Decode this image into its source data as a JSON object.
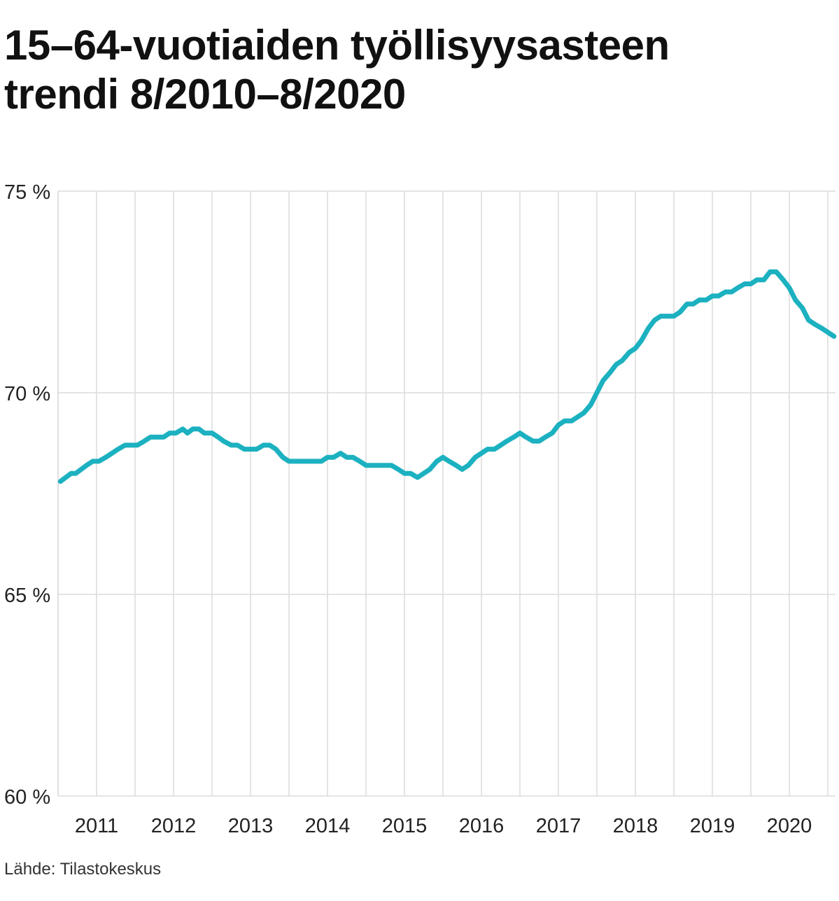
{
  "title_line1": "15–64-vuotiaiden työllisyysasteen",
  "title_line2": "trendi 8/2010–8/2020",
  "source": "Lähde: Tilastokeskus",
  "chart_data": {
    "type": "line",
    "title": "15–64-vuotiaiden työllisyysasteen trendi 8/2010–8/2020",
    "xlabel": "",
    "ylabel": "",
    "ylim": [
      60,
      75
    ],
    "xlim": [
      2010.5,
      2020.6
    ],
    "y_ticks": [
      60,
      65,
      70,
      75
    ],
    "y_tick_labels": [
      "60 %",
      "65 %",
      "70 %",
      "75 %"
    ],
    "x_ticks": [
      2011,
      2012,
      2013,
      2014,
      2015,
      2016,
      2017,
      2018,
      2019,
      2020
    ],
    "x_tick_labels": [
      "2011",
      "2012",
      "2013",
      "2014",
      "2015",
      "2016",
      "2017",
      "2018",
      "2019",
      "2020"
    ],
    "grid": true,
    "line_color": "#1cb1c0",
    "series": [
      {
        "name": "Työllisyysasteen trendi",
        "x": [
          2010.53,
          2010.67,
          2010.7,
          2010.73,
          2010.8,
          2010.87,
          2010.95,
          2011.03,
          2011.12,
          2011.2,
          2011.28,
          2011.37,
          2011.45,
          2011.53,
          2011.62,
          2011.7,
          2011.78,
          2011.87,
          2011.95,
          2012.03,
          2012.12,
          2012.18,
          2012.25,
          2012.33,
          2012.4,
          2012.5,
          2012.58,
          2012.65,
          2012.75,
          2012.83,
          2012.92,
          2013.0,
          2013.08,
          2013.17,
          2013.25,
          2013.33,
          2013.42,
          2013.5,
          2013.58,
          2013.67,
          2013.75,
          2013.83,
          2013.92,
          2014.0,
          2014.08,
          2014.17,
          2014.25,
          2014.33,
          2014.42,
          2014.5,
          2014.58,
          2014.67,
          2014.75,
          2014.83,
          2014.92,
          2015.0,
          2015.08,
          2015.17,
          2015.25,
          2015.33,
          2015.42,
          2015.5,
          2015.58,
          2015.67,
          2015.75,
          2015.83,
          2015.92,
          2016.0,
          2016.08,
          2016.17,
          2016.25,
          2016.33,
          2016.42,
          2016.5,
          2016.58,
          2016.67,
          2016.75,
          2016.83,
          2016.92,
          2017.0,
          2017.08,
          2017.17,
          2017.25,
          2017.33,
          2017.42,
          2017.5,
          2017.58,
          2017.67,
          2017.75,
          2017.83,
          2017.92,
          2018.0,
          2018.08,
          2018.17,
          2018.25,
          2018.33,
          2018.42,
          2018.5,
          2018.58,
          2018.67,
          2018.75,
          2018.83,
          2018.92,
          2019.0,
          2019.08,
          2019.17,
          2019.25,
          2019.33,
          2019.42,
          2019.5,
          2019.58,
          2019.67,
          2019.75,
          2019.83,
          2019.92,
          2020.0,
          2020.08,
          2020.17,
          2020.25,
          2020.33,
          2020.42,
          2020.5,
          2020.58
        ],
        "y": [
          67.8,
          68.0,
          68.0,
          68.0,
          68.1,
          68.2,
          68.3,
          68.3,
          68.4,
          68.5,
          68.6,
          68.7,
          68.7,
          68.7,
          68.8,
          68.9,
          68.9,
          68.9,
          69.0,
          69.0,
          69.1,
          69.0,
          69.1,
          69.1,
          69.0,
          69.0,
          68.9,
          68.8,
          68.7,
          68.7,
          68.6,
          68.6,
          68.6,
          68.7,
          68.7,
          68.6,
          68.4,
          68.3,
          68.3,
          68.3,
          68.3,
          68.3,
          68.3,
          68.4,
          68.4,
          68.5,
          68.4,
          68.4,
          68.3,
          68.2,
          68.2,
          68.2,
          68.2,
          68.2,
          68.1,
          68.0,
          68.0,
          67.9,
          68.0,
          68.1,
          68.3,
          68.4,
          68.3,
          68.2,
          68.1,
          68.2,
          68.4,
          68.5,
          68.6,
          68.6,
          68.7,
          68.8,
          68.9,
          69.0,
          68.9,
          68.8,
          68.8,
          68.9,
          69.0,
          69.2,
          69.3,
          69.3,
          69.4,
          69.5,
          69.7,
          70.0,
          70.3,
          70.5,
          70.7,
          70.8,
          71.0,
          71.1,
          71.3,
          71.6,
          71.8,
          71.9,
          71.9,
          71.9,
          72.0,
          72.2,
          72.2,
          72.3,
          72.3,
          72.4,
          72.4,
          72.5,
          72.5,
          72.6,
          72.7,
          72.7,
          72.8,
          72.8,
          73.0,
          73.0,
          72.8,
          72.6,
          72.3,
          72.1,
          71.8,
          71.7,
          71.6,
          71.5,
          71.4
        ]
      }
    ]
  }
}
